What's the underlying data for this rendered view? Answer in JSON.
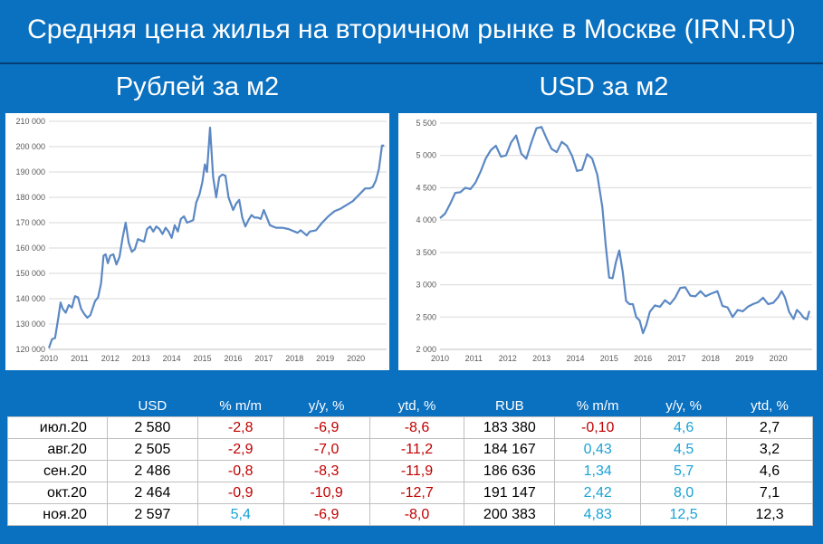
{
  "header": {
    "title": "Средняя цена жилья на вторичном рынке в Москве (IRN.RU)",
    "left_subtitle": "Рублей за м2",
    "right_subtitle": "USD за м2"
  },
  "chart_data": [
    {
      "type": "line",
      "title": "Рублей за м2",
      "xlabel": "",
      "ylabel": "",
      "x_tick_labels": [
        "2010",
        "2011",
        "2012",
        "2013",
        "2014",
        "2015",
        "2016",
        "2017",
        "2018",
        "2019",
        "2020"
      ],
      "y_tick_labels": [
        "120 000",
        "130 000",
        "140 000",
        "150 000",
        "160 000",
        "170 000",
        "180 000",
        "190 000",
        "200 000",
        "210 000"
      ],
      "xlim": [
        2010.0,
        2021.0
      ],
      "ylim": [
        120000,
        210000
      ],
      "y_ticks": [
        120000,
        130000,
        140000,
        150000,
        160000,
        170000,
        180000,
        190000,
        200000,
        210000
      ],
      "grid": true,
      "color": "#5b88c4",
      "x": [
        2010.0,
        2010.1,
        2010.2,
        2010.3,
        2010.38,
        2010.45,
        2010.55,
        2010.65,
        2010.75,
        2010.85,
        2010.95,
        2011.05,
        2011.15,
        2011.25,
        2011.35,
        2011.5,
        2011.6,
        2011.7,
        2011.78,
        2011.85,
        2011.92,
        2012.0,
        2012.1,
        2012.2,
        2012.3,
        2012.4,
        2012.5,
        2012.6,
        2012.7,
        2012.8,
        2012.9,
        2013.0,
        2013.1,
        2013.2,
        2013.3,
        2013.4,
        2013.5,
        2013.6,
        2013.7,
        2013.8,
        2013.9,
        2014.0,
        2014.1,
        2014.2,
        2014.3,
        2014.4,
        2014.5,
        2014.6,
        2014.7,
        2014.8,
        2014.9,
        2015.0,
        2015.08,
        2015.15,
        2015.25,
        2015.35,
        2015.45,
        2015.55,
        2015.65,
        2015.75,
        2015.85,
        2016.0,
        2016.1,
        2016.2,
        2016.3,
        2016.4,
        2016.5,
        2016.6,
        2016.7,
        2016.8,
        2016.9,
        2017.0,
        2017.2,
        2017.4,
        2017.6,
        2017.8,
        2018.0,
        2018.1,
        2018.2,
        2018.3,
        2018.4,
        2018.5,
        2018.7,
        2018.9,
        2019.1,
        2019.3,
        2019.5,
        2019.7,
        2019.9,
        2020.1,
        2020.3,
        2020.45,
        2020.55,
        2020.65,
        2020.75,
        2020.85,
        2020.92
      ],
      "values": [
        120500,
        124000,
        124500,
        132000,
        138500,
        136000,
        134500,
        137500,
        136500,
        141000,
        140500,
        136000,
        134000,
        132500,
        133500,
        139000,
        140500,
        146000,
        157000,
        157500,
        154000,
        157000,
        157500,
        153500,
        156500,
        164000,
        170000,
        162000,
        158500,
        159500,
        163500,
        163000,
        162500,
        167500,
        168500,
        166500,
        168500,
        167500,
        165500,
        168000,
        166500,
        164000,
        169000,
        166500,
        171500,
        172500,
        170000,
        170500,
        171000,
        178000,
        181000,
        186000,
        193000,
        190000,
        207500,
        188000,
        180000,
        188000,
        189000,
        188500,
        180000,
        175000,
        177500,
        179000,
        172000,
        168500,
        171000,
        173000,
        172000,
        172000,
        171500,
        175000,
        169000,
        168000,
        168000,
        167500,
        166500,
        166000,
        167000,
        166000,
        165000,
        166500,
        167000,
        170000,
        172500,
        174500,
        175500,
        177000,
        178500,
        181000,
        183500,
        183500,
        184100,
        186600,
        191100,
        200400,
        200400
      ]
    },
    {
      "type": "line",
      "title": "USD за м2",
      "xlabel": "",
      "ylabel": "",
      "x_tick_labels": [
        "2010",
        "2011",
        "2012",
        "2013",
        "2014",
        "2015",
        "2016",
        "2017",
        "2018",
        "2019",
        "2020"
      ],
      "y_tick_labels": [
        "2 000",
        "2 500",
        "3 000",
        "3 500",
        "4 000",
        "4 500",
        "5 000",
        "5 500"
      ],
      "xlim": [
        2010.0,
        2021.0
      ],
      "ylim": [
        2000,
        5500
      ],
      "y_ticks": [
        2000,
        2500,
        3000,
        3500,
        4000,
        4500,
        5000,
        5500
      ],
      "grid": true,
      "color": "#5b88c4",
      "x": [
        2010.0,
        2010.15,
        2010.3,
        2010.45,
        2010.6,
        2010.75,
        2010.9,
        2011.05,
        2011.2,
        2011.35,
        2011.5,
        2011.65,
        2011.8,
        2011.95,
        2012.1,
        2012.25,
        2012.4,
        2012.55,
        2012.7,
        2012.85,
        2013.0,
        2013.15,
        2013.3,
        2013.45,
        2013.6,
        2013.75,
        2013.9,
        2014.05,
        2014.2,
        2014.35,
        2014.5,
        2014.65,
        2014.8,
        2014.9,
        2015.0,
        2015.1,
        2015.2,
        2015.3,
        2015.4,
        2015.5,
        2015.6,
        2015.7,
        2015.8,
        2015.9,
        2016.0,
        2016.1,
        2016.2,
        2016.35,
        2016.5,
        2016.65,
        2016.8,
        2016.95,
        2017.1,
        2017.25,
        2017.4,
        2017.55,
        2017.7,
        2017.85,
        2018.0,
        2018.2,
        2018.35,
        2018.5,
        2018.65,
        2018.8,
        2018.95,
        2019.1,
        2019.25,
        2019.4,
        2019.55,
        2019.7,
        2019.85,
        2020.0,
        2020.1,
        2020.2,
        2020.32,
        2020.45,
        2020.55,
        2020.65,
        2020.75,
        2020.85,
        2020.92
      ],
      "values": [
        4030,
        4100,
        4250,
        4420,
        4430,
        4500,
        4480,
        4580,
        4750,
        4950,
        5080,
        5150,
        4980,
        5000,
        5200,
        5310,
        5030,
        4950,
        5200,
        5420,
        5440,
        5260,
        5100,
        5050,
        5210,
        5150,
        5000,
        4760,
        4780,
        5020,
        4950,
        4700,
        4200,
        3600,
        3110,
        3100,
        3350,
        3530,
        3200,
        2750,
        2700,
        2700,
        2500,
        2450,
        2250,
        2380,
        2580,
        2680,
        2660,
        2760,
        2700,
        2800,
        2950,
        2960,
        2830,
        2820,
        2900,
        2820,
        2860,
        2900,
        2670,
        2650,
        2500,
        2610,
        2590,
        2660,
        2700,
        2730,
        2800,
        2700,
        2720,
        2810,
        2900,
        2800,
        2580,
        2470,
        2610,
        2560,
        2490,
        2464,
        2597
      ]
    }
  ],
  "table": {
    "headers": [
      "",
      "USD",
      "% m/m",
      "y/y, %",
      "ytd, %",
      "RUB",
      "% m/m",
      "y/y, %",
      "ytd, %"
    ],
    "rows": [
      {
        "label": "июл.20",
        "usd": "2 580",
        "usd_mm": "-2,8",
        "usd_yy": "-6,9",
        "usd_ytd": "-8,6",
        "rub": "183 380",
        "rub_mm": "-0,10",
        "rub_yy": "4,6",
        "rub_ytd": "2,7"
      },
      {
        "label": "авг.20",
        "usd": "2 505",
        "usd_mm": "-2,9",
        "usd_yy": "-7,0",
        "usd_ytd": "-11,2",
        "rub": "184 167",
        "rub_mm": "0,43",
        "rub_yy": "4,5",
        "rub_ytd": "3,2"
      },
      {
        "label": "сен.20",
        "usd": "2 486",
        "usd_mm": "-0,8",
        "usd_yy": "-8,3",
        "usd_ytd": "-11,9",
        "rub": "186 636",
        "rub_mm": "1,34",
        "rub_yy": "5,7",
        "rub_ytd": "4,6"
      },
      {
        "label": "окт.20",
        "usd": "2 464",
        "usd_mm": "-0,9",
        "usd_yy": "-10,9",
        "usd_ytd": "-12,7",
        "rub": "191 147",
        "rub_mm": "2,42",
        "rub_yy": "8,0",
        "rub_ytd": "7,1"
      },
      {
        "label": "ноя.20",
        "usd": "2 597",
        "usd_mm": "5,4",
        "usd_yy": "-6,9",
        "usd_ytd": "-8,0",
        "rub": "200 383",
        "rub_mm": "4,83",
        "rub_yy": "12,5",
        "rub_ytd": "12,3"
      }
    ]
  }
}
